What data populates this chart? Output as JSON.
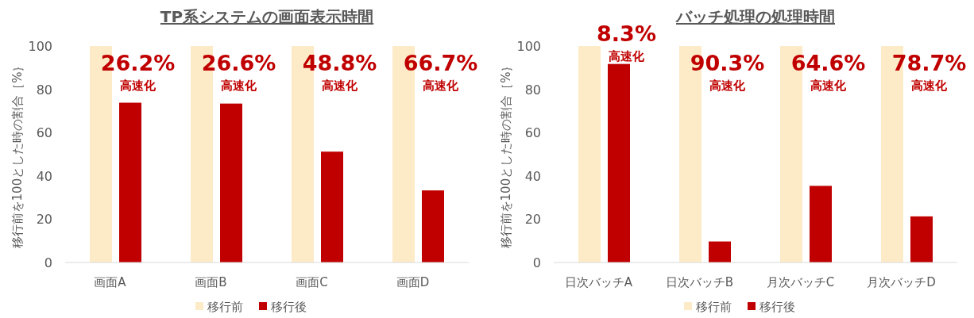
{
  "chart_data": [
    {
      "type": "bar",
      "title": "TP系システムの画面表示時間",
      "ylabel": "移行前を100とした時の割合［%｝",
      "categories": [
        "画面A",
        "画面B",
        "画面C",
        "画面D"
      ],
      "series": [
        {
          "name": "移行前",
          "color": "#fdebc8",
          "values": [
            100,
            100,
            100,
            100
          ]
        },
        {
          "name": "移行後",
          "color": "#c00000",
          "values": [
            73.8,
            73.4,
            51.2,
            33.3
          ]
        }
      ],
      "ylim": [
        0,
        100
      ],
      "yticks": [
        0,
        20,
        40,
        60,
        80,
        100
      ],
      "grid": false,
      "legend": "bottom",
      "annotations": [
        {
          "text": "26.2%",
          "x": "画面A",
          "y": 80
        },
        {
          "text": "高速化",
          "x": "画面A",
          "y": 80
        },
        {
          "text": "26.6%",
          "x": "画面B",
          "y": 80
        },
        {
          "text": "高速化",
          "x": "画面B",
          "y": 80
        },
        {
          "text": "48.8%",
          "x": "画面C",
          "y": 80
        },
        {
          "text": "高速化",
          "x": "画面C",
          "y": 80
        },
        {
          "text": "66.7%",
          "x": "画面D",
          "y": 80
        },
        {
          "text": "高速化",
          "x": "画面D",
          "y": 80
        }
      ]
    },
    {
      "type": "bar",
      "title": "バッチ処理の処理時間",
      "ylabel": "移行前を100とした時の割合［%｝",
      "categories": [
        "日次バッチA",
        "日次バッチB",
        "月次バッチC",
        "月次バッチD"
      ],
      "series": [
        {
          "name": "移行前",
          "color": "#fdebc8",
          "values": [
            100,
            100,
            100,
            100
          ]
        },
        {
          "name": "移行後",
          "color": "#c00000",
          "values": [
            91.7,
            9.7,
            35.4,
            21.3
          ]
        }
      ],
      "ylim": [
        0,
        100
      ],
      "yticks": [
        0,
        20,
        40,
        60,
        80,
        100
      ],
      "grid": false,
      "legend": "bottom",
      "annotations": [
        {
          "text": "8.3%",
          "x": "日次バッチA",
          "y": 93.4
        },
        {
          "text": "高速化",
          "x": "日次バッチA",
          "y": 93.4
        },
        {
          "text": "90.3%",
          "x": "日次バッチB",
          "y": 80
        },
        {
          "text": "高速化",
          "x": "日次バッチB",
          "y": 80
        },
        {
          "text": "64.6%",
          "x": "月次バッチC",
          "y": 80
        },
        {
          "text": "高速化",
          "x": "月次バッチC",
          "y": 80
        },
        {
          "text": "78.7%",
          "x": "月次バッチD",
          "y": 80
        },
        {
          "text": "高速化",
          "x": "月次バッチD",
          "y": 80
        }
      ]
    }
  ]
}
